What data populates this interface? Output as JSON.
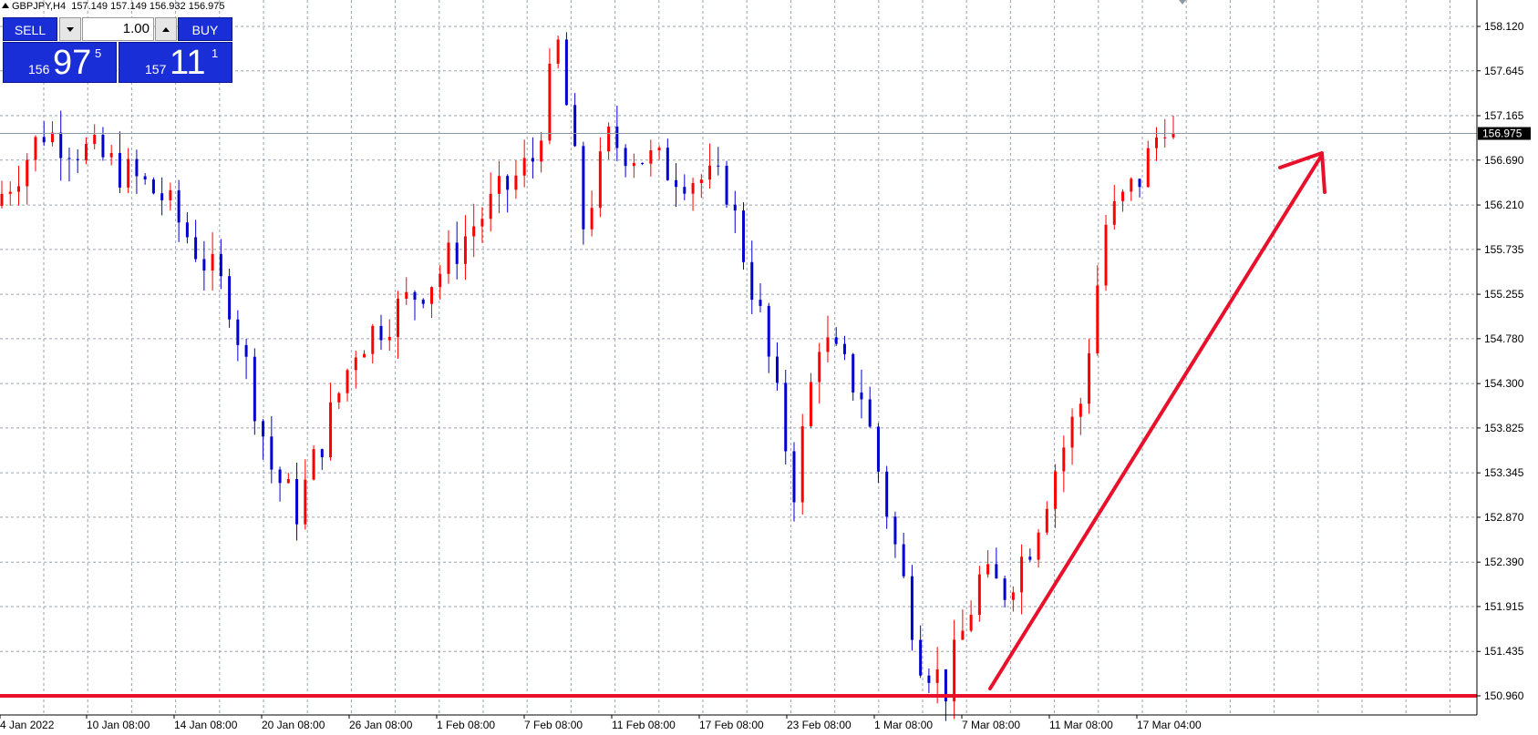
{
  "header": {
    "symbol": "GBPJPY,H4",
    "o": "157.149",
    "h": "157.149",
    "l": "156.932",
    "c": "156.975"
  },
  "trade_panel": {
    "sell_label": "SELL",
    "buy_label": "BUY",
    "volume": "1.00",
    "sell_price": {
      "prefix": "156",
      "big": "97",
      "sup": "5"
    },
    "buy_price": {
      "prefix": "157",
      "big": "11",
      "sup": "1"
    }
  },
  "chart_data": {
    "type": "candlestick",
    "title": "GBPJPY,H4",
    "price_labels": [
      "158.120",
      "157.645",
      "157.165",
      "156.690",
      "156.210",
      "155.735",
      "155.255",
      "154.780",
      "154.300",
      "153.825",
      "153.345",
      "152.870",
      "152.390",
      "151.915",
      "151.435",
      "150.960"
    ],
    "time_labels": [
      "4 Jan 2022",
      "10 Jan 08:00",
      "14 Jan 08:00",
      "20 Jan 08:00",
      "26 Jan 08:00",
      "1 Feb 08:00",
      "7 Feb 08:00",
      "11 Feb 08:00",
      "17 Feb 08:00",
      "23 Feb 08:00",
      "1 Mar 08:00",
      "7 Mar 08:00",
      "11 Mar 08:00",
      "17 Mar 04:00"
    ],
    "current_price": "156.975",
    "ylim": [
      150.85,
      158.35
    ],
    "support_level": 150.96,
    "up_color": "#ff0000",
    "down_color": "#0000d0",
    "grid": true,
    "path": [
      [
        0,
        156.2
      ],
      [
        6,
        157.0
      ],
      [
        13,
        156.7
      ],
      [
        20,
        156.3
      ],
      [
        28,
        155.2
      ],
      [
        33,
        153.4
      ],
      [
        36,
        152.95
      ],
      [
        43,
        154.7
      ],
      [
        53,
        155.5
      ],
      [
        57,
        156.0
      ],
      [
        64,
        156.7
      ],
      [
        67,
        157.9
      ],
      [
        70,
        156.0
      ],
      [
        73,
        156.9
      ],
      [
        80,
        156.6
      ],
      [
        87,
        156.4
      ],
      [
        91,
        155.0
      ],
      [
        95,
        153.2
      ],
      [
        98,
        154.8
      ],
      [
        103,
        154.2
      ],
      [
        107,
        152.55
      ],
      [
        110,
        151.4
      ],
      [
        113,
        151.05
      ],
      [
        117,
        152.2
      ],
      [
        120,
        152.1
      ],
      [
        123,
        152.6
      ],
      [
        126,
        153.4
      ],
      [
        129,
        154.1
      ],
      [
        132,
        156.0
      ],
      [
        136,
        156.5
      ],
      [
        139,
        157.15
      ]
    ]
  }
}
